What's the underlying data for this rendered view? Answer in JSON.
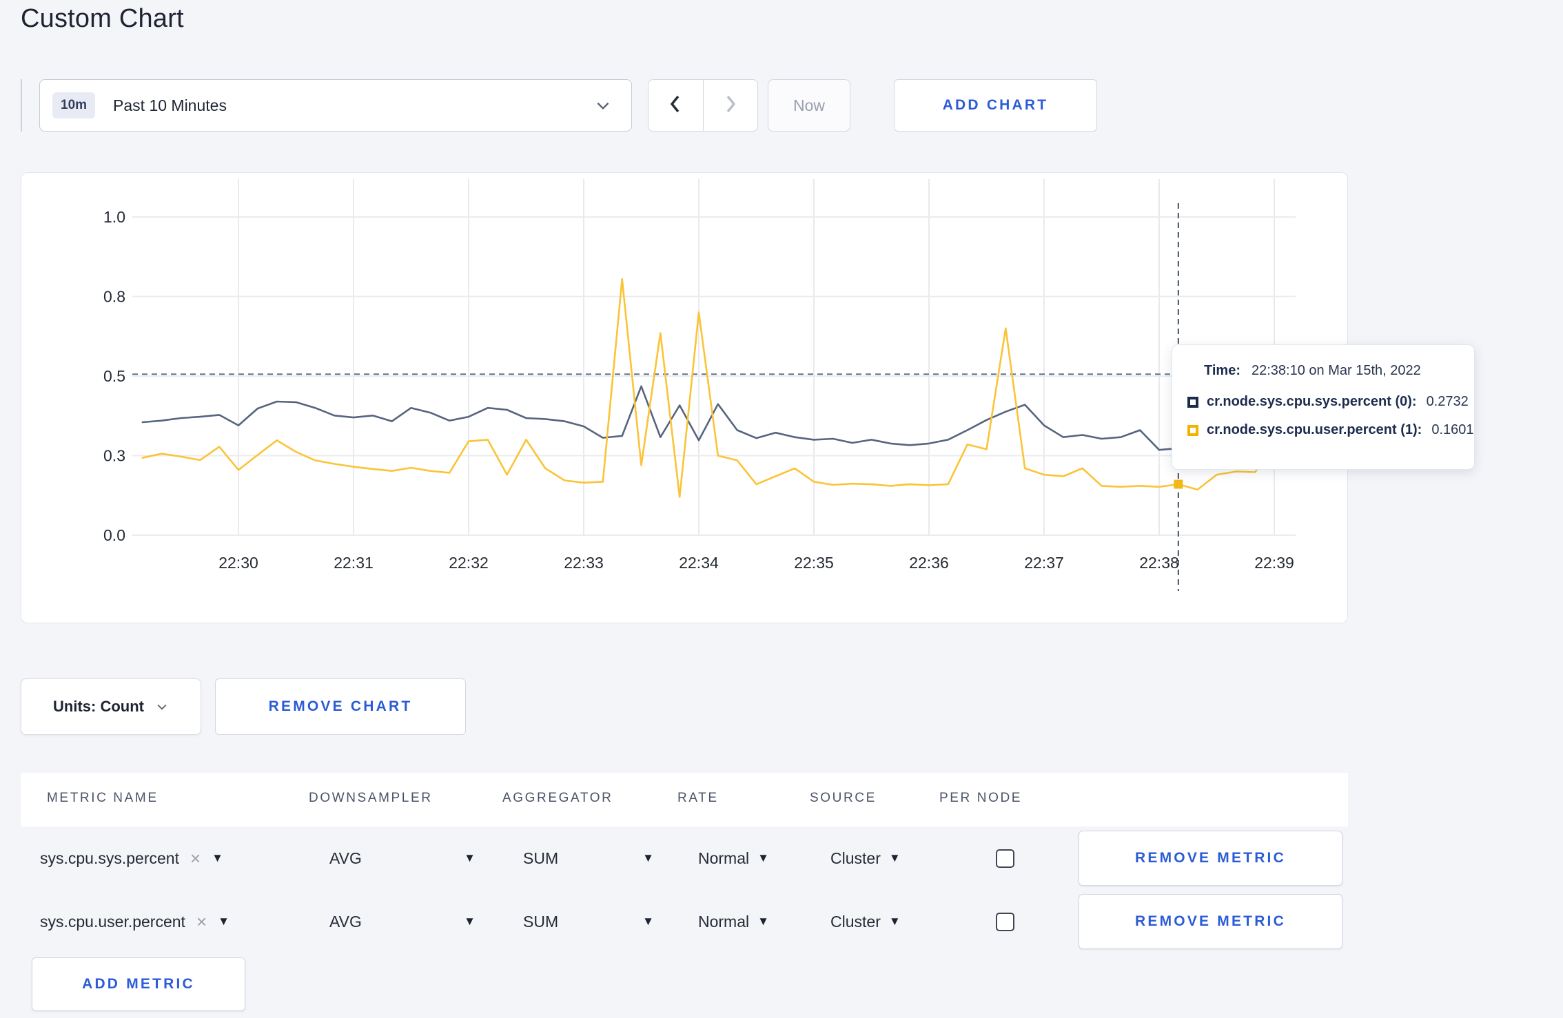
{
  "page": {
    "title": "Custom Chart"
  },
  "toolbar": {
    "range_badge": "10m",
    "range_label": "Past 10 Minutes",
    "now_label": "Now",
    "add_chart_label": "ADD CHART"
  },
  "chart_data": {
    "type": "line",
    "title": "",
    "xlabel": "",
    "ylabel": "",
    "ylim": [
      0,
      1
    ],
    "grid": true,
    "x_start": "22:29:10",
    "x_step_seconds": 10,
    "x_tick_labels": [
      "22:30",
      "22:31",
      "22:32",
      "22:33",
      "22:34",
      "22:35",
      "22:36",
      "22:37",
      "22:38",
      "22:39"
    ],
    "y_tick_values": [
      0,
      0.25,
      0.5,
      0.75,
      1.0
    ],
    "y_tick_labels": [
      "0.0",
      "0.3",
      "0.5",
      "0.8",
      "1.0"
    ],
    "series": [
      {
        "name": "cr.node.sys.cpu.sys.percent",
        "color": "#56647f",
        "dot_color": "#2c3c59",
        "values": [
          0.355,
          0.36,
          0.368,
          0.372,
          0.378,
          0.345,
          0.398,
          0.42,
          0.418,
          0.4,
          0.376,
          0.37,
          0.376,
          0.358,
          0.4,
          0.385,
          0.36,
          0.372,
          0.4,
          0.394,
          0.368,
          0.365,
          0.358,
          0.342,
          0.306,
          0.312,
          0.468,
          0.308,
          0.408,
          0.298,
          0.412,
          0.33,
          0.305,
          0.322,
          0.308,
          0.3,
          0.303,
          0.29,
          0.3,
          0.288,
          0.283,
          0.288,
          0.3,
          0.33,
          0.362,
          0.388,
          0.41,
          0.345,
          0.308,
          0.315,
          0.303,
          0.308,
          0.33,
          0.268,
          0.2732,
          0.29,
          0.335,
          0.305,
          0.295,
          0.305,
          0.35
        ]
      },
      {
        "name": "cr.node.sys.cpu.user.percent",
        "color": "#fbc437",
        "dot_color": "#f2b818",
        "values": [
          0.243,
          0.256,
          0.247,
          0.236,
          0.278,
          0.205,
          0.252,
          0.298,
          0.262,
          0.235,
          0.224,
          0.215,
          0.208,
          0.202,
          0.212,
          0.202,
          0.196,
          0.295,
          0.3,
          0.19,
          0.3,
          0.21,
          0.172,
          0.165,
          0.168,
          0.805,
          0.22,
          0.635,
          0.12,
          0.7,
          0.25,
          0.235,
          0.16,
          0.185,
          0.21,
          0.168,
          0.158,
          0.162,
          0.16,
          0.155,
          0.16,
          0.157,
          0.16,
          0.285,
          0.27,
          0.65,
          0.21,
          0.19,
          0.185,
          0.21,
          0.155,
          0.152,
          0.155,
          0.152,
          0.1601,
          0.143,
          0.19,
          0.2,
          0.198,
          0.285,
          0.24
        ]
      }
    ],
    "crosshair": {
      "x_index": 54,
      "time": "22:38:10",
      "hline_value": 0.506
    }
  },
  "tooltip": {
    "time_label": "Time:",
    "time_value": "22:38:10 on Mar 15th, 2022",
    "rows": [
      {
        "label": "cr.node.sys.cpu.sys.percent (0):",
        "value": "0.2732",
        "color": "#1c2b4a"
      },
      {
        "label": "cr.node.sys.cpu.user.percent (1):",
        "value": "0.1601",
        "color": "#f0b400"
      }
    ]
  },
  "chart_footer": {
    "units_label": "Units: Count",
    "remove_chart_label": "REMOVE CHART"
  },
  "metrics_table": {
    "columns": [
      "METRIC NAME",
      "DOWNSAMPLER",
      "AGGREGATOR",
      "RATE",
      "SOURCE",
      "PER NODE"
    ],
    "rows": [
      {
        "metric": "sys.cpu.sys.percent",
        "downsampler": "AVG",
        "aggregator": "SUM",
        "rate": "Normal",
        "source": "Cluster",
        "per_node_checked": false,
        "remove_label": "REMOVE METRIC"
      },
      {
        "metric": "sys.cpu.user.percent",
        "downsampler": "AVG",
        "aggregator": "SUM",
        "rate": "Normal",
        "source": "Cluster",
        "per_node_checked": false,
        "remove_label": "REMOVE METRIC"
      }
    ],
    "add_metric_label": "ADD METRIC"
  },
  "icons": {
    "clear_x": "×",
    "caret_down_small": "▼"
  }
}
